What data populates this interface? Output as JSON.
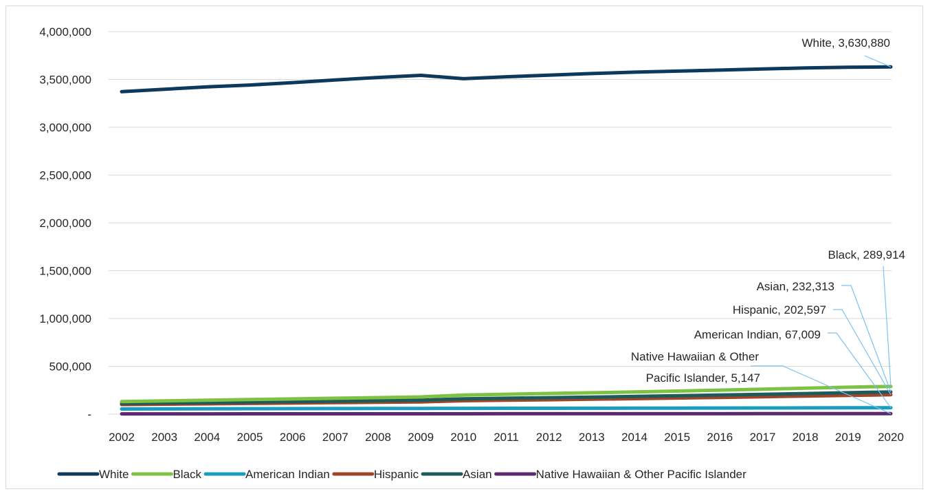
{
  "chart_data": {
    "type": "line",
    "title": "",
    "xlabel": "",
    "ylabel": "",
    "x": [
      "2002",
      "2003",
      "2004",
      "2005",
      "2006",
      "2007",
      "2008",
      "2009",
      "2010",
      "2011",
      "2012",
      "2013",
      "2014",
      "2015",
      "2016",
      "2017",
      "2018",
      "2019",
      "2020"
    ],
    "ylim": [
      0,
      4000000
    ],
    "yticks": [
      0,
      500000,
      1000000,
      1500000,
      2000000,
      2500000,
      3000000,
      3500000,
      4000000
    ],
    "ytick_labels": [
      "-",
      "500,000",
      "1,000,000",
      "1,500,000",
      "2,000,000",
      "2,500,000",
      "3,000,000",
      "3,500,000",
      "4,000,000"
    ],
    "grid": true,
    "legend_position": "bottom",
    "series": [
      {
        "name": "White",
        "color": "#0d3a5c",
        "values": [
          3373000,
          3398000,
          3422000,
          3442000,
          3467000,
          3495000,
          3521000,
          3543000,
          3508000,
          3528000,
          3545000,
          3562000,
          3576000,
          3587000,
          3598000,
          3610000,
          3620000,
          3628000,
          3630880
        ],
        "label": "White,  3,630,880"
      },
      {
        "name": "Black",
        "color": "#7dc242",
        "values": [
          132000,
          139000,
          146000,
          153000,
          159000,
          166000,
          173000,
          180000,
          200000,
          208000,
          216000,
          224000,
          232000,
          241000,
          251000,
          261000,
          271000,
          281000,
          289914
        ],
        "label": "Black,  289,914"
      },
      {
        "name": "American Indian",
        "color": "#1a9bc0",
        "values": [
          54000,
          55000,
          56000,
          57000,
          57500,
          58000,
          59000,
          60000,
          60500,
          61000,
          61500,
          62000,
          62500,
          63500,
          64000,
          65000,
          65500,
          66200,
          67009
        ],
        "label": "American Indian,  67,009"
      },
      {
        "name": "Hispanic",
        "color": "#a0452a",
        "values": [
          100000,
          104000,
          108000,
          112000,
          116000,
          120000,
          124000,
          128000,
          140000,
          145000,
          150000,
          156000,
          162000,
          168000,
          175000,
          182000,
          189000,
          196000,
          202597
        ],
        "label": "Hispanic,  202,597"
      },
      {
        "name": "Asian",
        "color": "#1f5a5a",
        "values": [
          112000,
          117000,
          121000,
          126000,
          131000,
          136000,
          141000,
          146000,
          160000,
          166000,
          172000,
          178000,
          185000,
          192000,
          199000,
          207000,
          215000,
          224000,
          232313
        ],
        "label": "Asian,  232,313"
      },
      {
        "name": "Native Hawaiian & Other Pacific Islander",
        "color": "#5b2a6e",
        "values": [
          3000,
          3100,
          3200,
          3300,
          3400,
          3500,
          3600,
          3700,
          3900,
          4000,
          4100,
          4200,
          4300,
          4400,
          4550,
          4700,
          4850,
          5000,
          5147
        ],
        "label_lines": [
          "Native Hawaiian & Other",
          "Pacific Islander,  5,147"
        ]
      }
    ]
  }
}
